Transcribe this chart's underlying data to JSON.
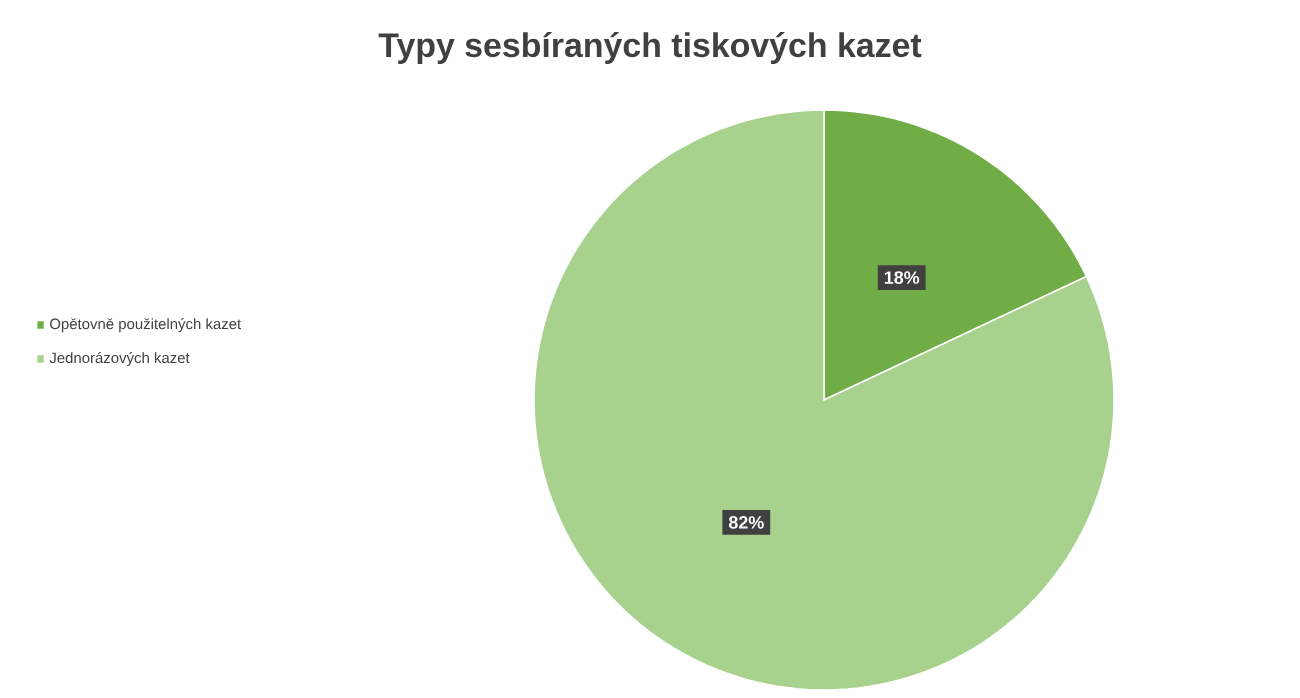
{
  "chart_data": {
    "type": "pie",
    "title": "Typy sesbíraných tiskových kazet",
    "categories": [
      "Opětovně použitelných kazet",
      "Jednorázových kazet"
    ],
    "values": [
      18,
      82
    ],
    "colors": [
      "#70ad47",
      "#a9d18e"
    ],
    "value_labels": [
      "18%",
      "82%"
    ],
    "legend": "left"
  }
}
